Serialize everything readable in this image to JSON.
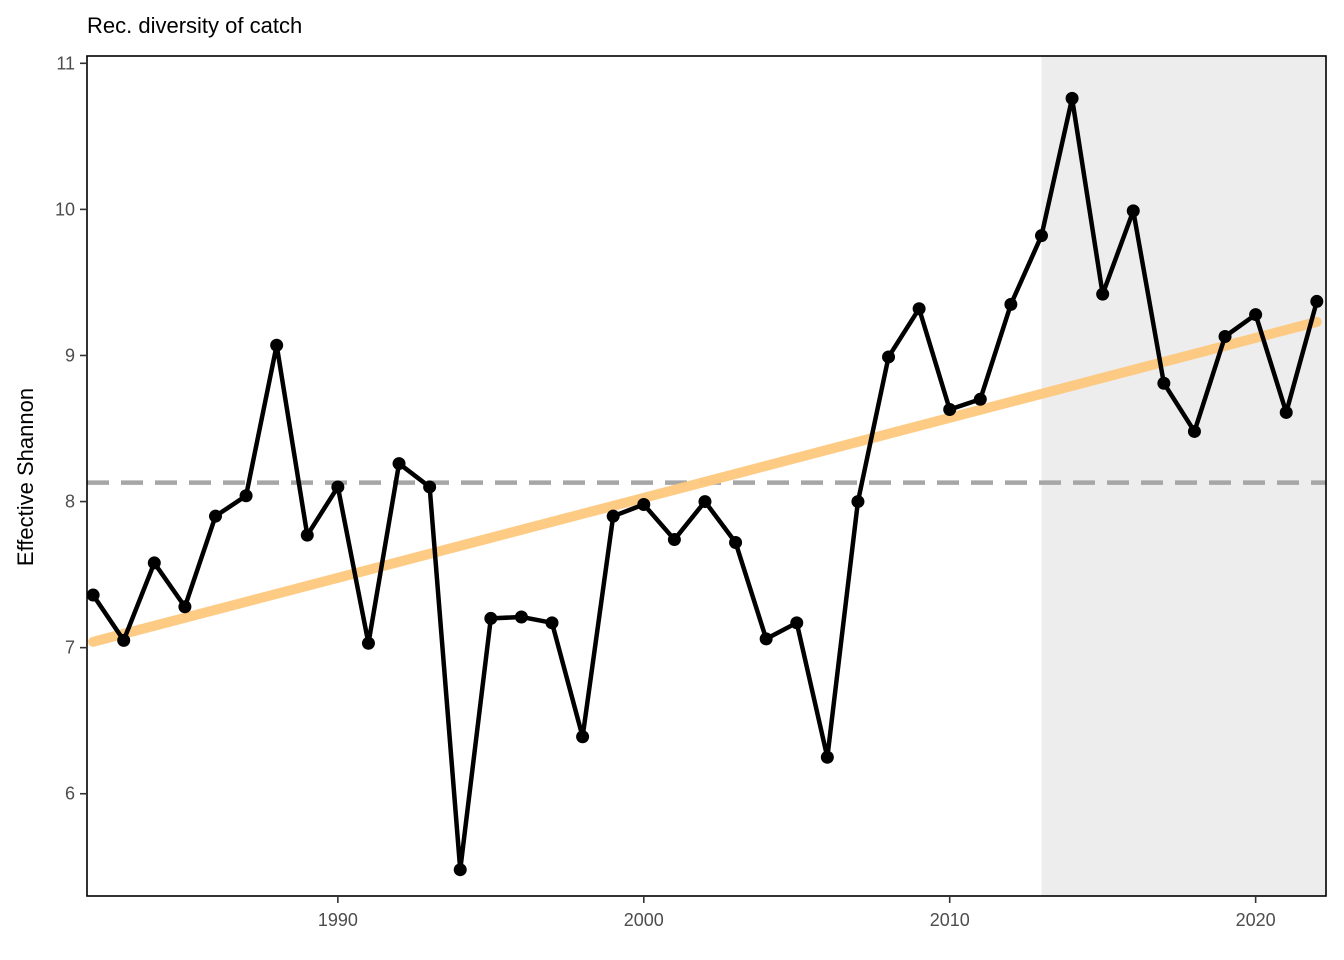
{
  "chart_data": {
    "type": "line",
    "title": "Rec. diversity of catch",
    "xlabel": "",
    "ylabel": "Effective Shannon",
    "xlim": [
      1981.8,
      2022.3
    ],
    "ylim": [
      5.3,
      11.05
    ],
    "x_ticks": [
      1990,
      2000,
      2010,
      2020
    ],
    "y_ticks": [
      6,
      7,
      8,
      9,
      10,
      11
    ],
    "grid": false,
    "shaded_region": {
      "x_start": 2013,
      "x_end": 2022.3,
      "color": "#ededed"
    },
    "reference_line": {
      "y": 8.13,
      "style": "dashed",
      "color": "#a6a6a6"
    },
    "trend_line": {
      "x": [
        1982,
        2022
      ],
      "y": [
        7.04,
        9.23
      ],
      "color": "#fec97f"
    },
    "series": [
      {
        "color": "#000000",
        "x": [
          1982,
          1983,
          1984,
          1985,
          1986,
          1987,
          1988,
          1989,
          1990,
          1991,
          1992,
          1993,
          1994,
          1995,
          1996,
          1997,
          1998,
          1999,
          2000,
          2001,
          2002,
          2003,
          2004,
          2005,
          2006,
          2007,
          2008,
          2009,
          2010,
          2011,
          2012,
          2013,
          2014,
          2015,
          2016,
          2017,
          2018,
          2019,
          2020,
          2021,
          2022
        ],
        "y": [
          7.36,
          7.05,
          7.58,
          7.28,
          7.9,
          8.04,
          9.07,
          7.77,
          8.1,
          7.03,
          8.26,
          8.1,
          5.48,
          7.2,
          7.21,
          7.17,
          6.39,
          7.9,
          7.98,
          7.74,
          8.0,
          7.72,
          7.06,
          7.17,
          6.25,
          8.0,
          8.99,
          9.32,
          8.63,
          8.7,
          9.35,
          9.82,
          10.76,
          9.42,
          9.99,
          8.81,
          8.48,
          9.13,
          9.28,
          8.61,
          9.37
        ]
      }
    ]
  }
}
